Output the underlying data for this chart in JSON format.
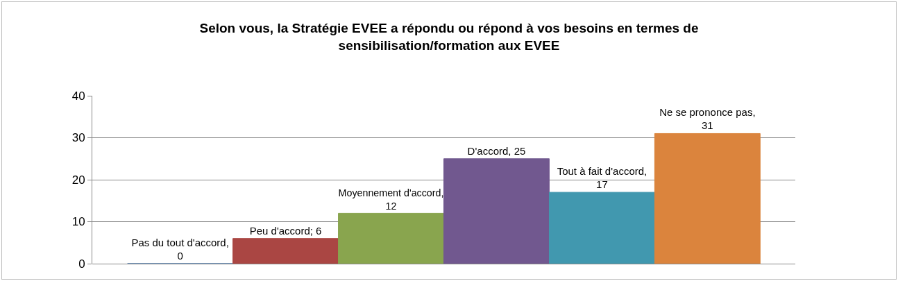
{
  "chart_data": {
    "type": "bar",
    "title": "Selon vous, la Stratégie EVEE a répondu ou répond à vos besoins en termes de sensibilisation/formation aux EVEE",
    "categories": [
      null
    ],
    "series": [
      {
        "color": "#4572a7",
        "values": [
          0
        ],
        "value_labels": [
          "Pas du tout d'accord, 0"
        ]
      },
      {
        "color": "#aa4643",
        "values": [
          6
        ],
        "value_labels": [
          "Peu d'accord; 6"
        ]
      },
      {
        "color": "#89a54e",
        "values": [
          12
        ],
        "value_labels": [
          "Moyennement d'accord, 12"
        ]
      },
      {
        "color": "#71588f",
        "values": [
          25
        ],
        "value_labels": [
          "D'accord, 25"
        ]
      },
      {
        "color": "#4198af",
        "values": [
          17
        ],
        "value_labels": [
          "Tout à fait d'accord, 17"
        ]
      },
      {
        "color": "#db843d",
        "values": [
          31
        ],
        "value_labels": [
          "Ne se prononce pas, 31"
        ]
      }
    ],
    "ylim": [
      0,
      40
    ],
    "yticks": [
      0,
      10,
      20,
      30,
      40
    ],
    "grid": "y"
  }
}
